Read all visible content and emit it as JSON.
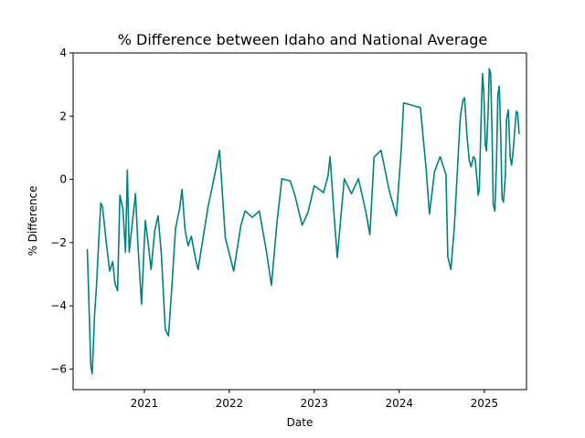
{
  "chart_data": {
    "type": "line",
    "title": "% Difference between Idaho and National Average",
    "xlabel": "Date",
    "ylabel": "% Difference",
    "xlim": [
      "2020-03-01",
      "2025-07-01"
    ],
    "ylim": [
      -6.65,
      4
    ],
    "x_ticks": [
      "2021-01-01",
      "2022-01-01",
      "2023-01-01",
      "2024-01-01",
      "2025-01-01"
    ],
    "x_tick_labels": [
      "2021",
      "2022",
      "2023",
      "2024",
      "2025"
    ],
    "y_ticks": [
      -6,
      -4,
      -2,
      0,
      2,
      4
    ],
    "y_tick_labels": [
      "−6",
      "−4",
      "−2",
      "0",
      "2",
      "4"
    ],
    "grid": false,
    "series": [
      {
        "color": "#008080",
        "points": [
          [
            "2020-05-01",
            -2.22
          ],
          [
            "2020-05-16",
            -5.9
          ],
          [
            "2020-05-22",
            -6.15
          ],
          [
            "2020-06-01",
            -4.3
          ],
          [
            "2020-06-10",
            -3.3
          ],
          [
            "2020-06-20",
            -1.8
          ],
          [
            "2020-06-28",
            -0.75
          ],
          [
            "2020-07-05",
            -0.85
          ],
          [
            "2020-07-20",
            -1.9
          ],
          [
            "2020-08-05",
            -2.9
          ],
          [
            "2020-08-18",
            -2.6
          ],
          [
            "2020-08-28",
            -3.3
          ],
          [
            "2020-09-08",
            -3.52
          ],
          [
            "2020-09-18",
            -0.5
          ],
          [
            "2020-10-01",
            -0.95
          ],
          [
            "2020-10-12",
            -2.3
          ],
          [
            "2020-10-20",
            0.3
          ],
          [
            "2020-10-28",
            -2.3
          ],
          [
            "2020-11-10",
            -1.4
          ],
          [
            "2020-11-24",
            -0.45
          ],
          [
            "2020-12-05",
            -2.15
          ],
          [
            "2020-12-20",
            -3.95
          ],
          [
            "2021-01-05",
            -1.3
          ],
          [
            "2021-01-18",
            -2.05
          ],
          [
            "2021-01-30",
            -2.85
          ],
          [
            "2021-02-15",
            -1.6
          ],
          [
            "2021-03-01",
            -1.15
          ],
          [
            "2021-03-15",
            -2.35
          ],
          [
            "2021-04-01",
            -4.75
          ],
          [
            "2021-04-15",
            -4.95
          ],
          [
            "2021-05-01",
            -3.2
          ],
          [
            "2021-05-15",
            -1.55
          ],
          [
            "2021-06-01",
            -0.95
          ],
          [
            "2021-06-12",
            -0.32
          ],
          [
            "2021-06-25",
            -1.6
          ],
          [
            "2021-07-08",
            -2.1
          ],
          [
            "2021-07-22",
            -1.8
          ],
          [
            "2021-08-10",
            -2.55
          ],
          [
            "2021-08-20",
            -2.85
          ],
          [
            "2021-09-05",
            -2.1
          ],
          [
            "2021-10-01",
            -0.9
          ],
          [
            "2021-11-05",
            0.35
          ],
          [
            "2021-11-20",
            0.92
          ],
          [
            "2021-12-15",
            -1.85
          ],
          [
            "2022-01-20",
            -2.9
          ],
          [
            "2022-02-20",
            -1.45
          ],
          [
            "2022-03-10",
            -1.0
          ],
          [
            "2022-04-10",
            -1.2
          ],
          [
            "2022-05-10",
            -1.0
          ],
          [
            "2022-06-10",
            -2.3
          ],
          [
            "2022-07-01",
            -3.35
          ],
          [
            "2022-07-25",
            -1.35
          ],
          [
            "2022-08-15",
            0.02
          ],
          [
            "2022-09-20",
            -0.05
          ],
          [
            "2022-10-10",
            -0.5
          ],
          [
            "2022-11-10",
            -1.45
          ],
          [
            "2022-12-05",
            -1.05
          ],
          [
            "2023-01-01",
            -0.2
          ],
          [
            "2023-02-10",
            -0.42
          ],
          [
            "2023-03-01",
            0.1
          ],
          [
            "2023-03-10",
            0.72
          ],
          [
            "2023-03-28",
            -1.2
          ],
          [
            "2023-04-10",
            -2.47
          ],
          [
            "2023-05-10",
            0.02
          ],
          [
            "2023-06-10",
            -0.45
          ],
          [
            "2023-07-10",
            0.02
          ],
          [
            "2023-08-10",
            -1.0
          ],
          [
            "2023-08-28",
            -1.75
          ],
          [
            "2023-09-15",
            0.7
          ],
          [
            "2023-10-15",
            0.92
          ],
          [
            "2023-11-20",
            -0.38
          ],
          [
            "2023-12-20",
            -1.15
          ],
          [
            "2024-01-10",
            0.95
          ],
          [
            "2024-01-20",
            2.42
          ],
          [
            "2024-04-01",
            2.27
          ],
          [
            "2024-04-25",
            0.4
          ],
          [
            "2024-05-10",
            -1.1
          ],
          [
            "2024-06-01",
            0.25
          ],
          [
            "2024-06-25",
            0.72
          ],
          [
            "2024-07-20",
            0.15
          ],
          [
            "2024-07-28",
            -2.45
          ],
          [
            "2024-08-10",
            -2.85
          ],
          [
            "2024-08-25",
            -1.5
          ],
          [
            "2024-09-10",
            0.7
          ],
          [
            "2024-09-20",
            2.0
          ],
          [
            "2024-10-01",
            2.5
          ],
          [
            "2024-10-08",
            2.58
          ],
          [
            "2024-10-18",
            1.4
          ],
          [
            "2024-10-28",
            0.6
          ],
          [
            "2024-11-05",
            0.4
          ],
          [
            "2024-11-15",
            0.72
          ],
          [
            "2024-11-22",
            0.65
          ],
          [
            "2024-12-01",
            -0.05
          ],
          [
            "2024-12-05",
            -0.5
          ],
          [
            "2024-12-10",
            -0.35
          ],
          [
            "2024-12-18",
            1.9
          ],
          [
            "2024-12-24",
            3.35
          ],
          [
            "2024-12-30",
            2.7
          ],
          [
            "2025-01-05",
            1.1
          ],
          [
            "2025-01-10",
            0.9
          ],
          [
            "2025-01-18",
            2.3
          ],
          [
            "2025-01-22",
            3.5
          ],
          [
            "2025-01-28",
            3.35
          ],
          [
            "2025-02-03",
            1.5
          ],
          [
            "2025-02-08",
            -0.8
          ],
          [
            "2025-02-15",
            -1.0
          ],
          [
            "2025-02-22",
            0.5
          ],
          [
            "2025-02-28",
            2.7
          ],
          [
            "2025-03-06",
            2.95
          ],
          [
            "2025-03-12",
            1.5
          ],
          [
            "2025-03-18",
            -0.6
          ],
          [
            "2025-03-24",
            -0.72
          ],
          [
            "2025-04-01",
            0.1
          ],
          [
            "2025-04-06",
            1.9
          ],
          [
            "2025-04-14",
            2.2
          ],
          [
            "2025-04-22",
            0.7
          ],
          [
            "2025-04-28",
            0.45
          ],
          [
            "2025-05-04",
            0.85
          ],
          [
            "2025-05-12",
            1.6
          ],
          [
            "2025-05-18",
            2.15
          ],
          [
            "2025-05-24",
            2.1
          ],
          [
            "2025-05-30",
            1.45
          ]
        ]
      }
    ]
  }
}
